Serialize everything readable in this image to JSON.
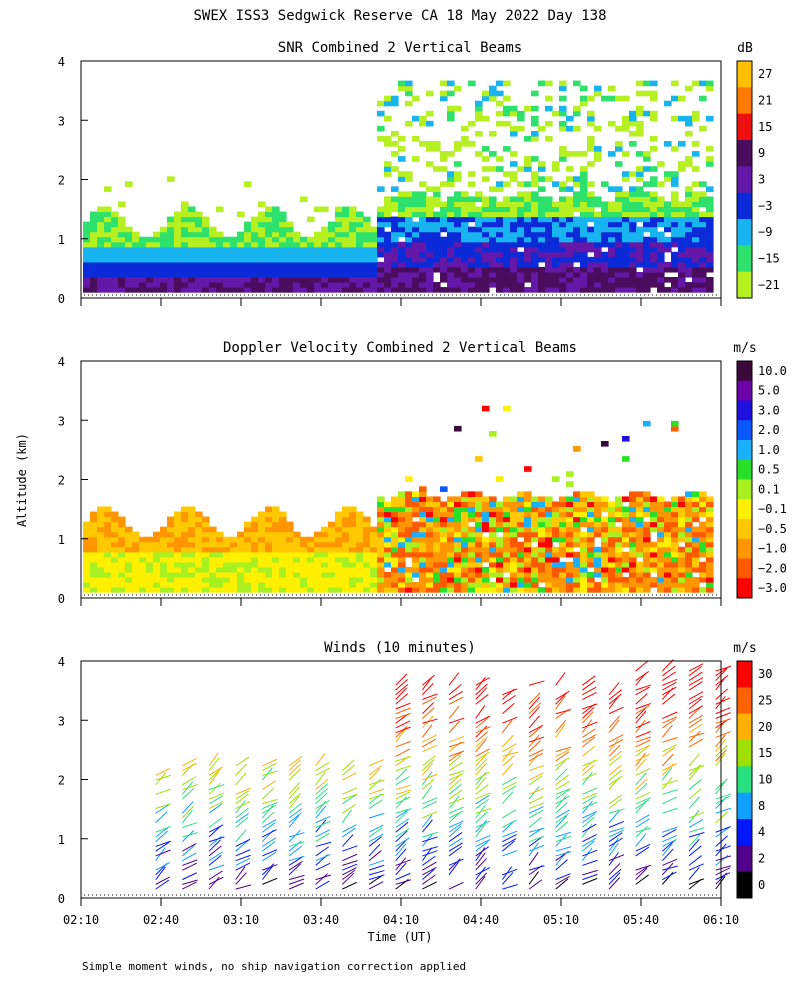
{
  "title": "SWEX ISS3 Sedgwick Reserve CA  18 May 2022 Day 138",
  "ylabel": "Altitude (km)",
  "xlabel": "Time (UT)",
  "footnote": "Simple moment winds, no ship navigation correction applied",
  "chart_data": [
    {
      "type": "heatmap",
      "title": "SNR Combined 2 Vertical Beams",
      "ylabel": "Altitude (km)",
      "ylim": [
        0,
        4
      ],
      "yticks": [
        "0",
        "1",
        "2",
        "3",
        "4"
      ],
      "xlim": [
        "02:10",
        "06:10"
      ],
      "colorbar": {
        "unit": "dB",
        "ticks": [
          "27",
          "21",
          "15",
          "9",
          "3",
          "−3",
          "−9",
          "−15",
          "−21"
        ],
        "colors": [
          "#ffc000",
          "#ff7a00",
          "#ee1010",
          "#4a0d5e",
          "#6418a8",
          "#0b2bd8",
          "#18b4f0",
          "#2ee06c",
          "#b6f020"
        ]
      }
    },
    {
      "type": "heatmap",
      "title": "Doppler Velocity Combined 2 Vertical Beams",
      "ylabel": "Altitude (km)",
      "ylim": [
        0,
        4
      ],
      "yticks": [
        "0",
        "1",
        "2",
        "3",
        "4"
      ],
      "xlim": [
        "02:10",
        "06:10"
      ],
      "colorbar": {
        "unit": "m/s",
        "ticks": [
          "10.0",
          "5.0",
          "3.0",
          "2.0",
          "1.0",
          "0.5",
          "0.1",
          "−0.1",
          "−0.5",
          "−1.0",
          "−2.0",
          "−3.0"
        ],
        "colors": [
          "#3a0a3a",
          "#6b00a8",
          "#2010e0",
          "#0858ff",
          "#18b0ff",
          "#28e028",
          "#a8f020",
          "#fff000",
          "#ffc800",
          "#ff9600",
          "#ff5a00",
          "#ff0000"
        ]
      }
    },
    {
      "type": "scatter",
      "title": "Winds (10 minutes)",
      "ylabel": "Altitude (km)",
      "ylim": [
        0,
        4
      ],
      "yticks": [
        "0",
        "1",
        "2",
        "3",
        "4"
      ],
      "xlabel": "Time (UT)",
      "xticks": [
        "02:10",
        "02:40",
        "03:10",
        "03:40",
        "04:10",
        "04:40",
        "05:10",
        "05:40",
        "06:10"
      ],
      "colorbar": {
        "unit": "m/s",
        "ticks": [
          "30",
          "25",
          "20",
          "15",
          "10",
          "8",
          "4",
          "2",
          "0"
        ],
        "colors": [
          "#ff0000",
          "#ff6000",
          "#ffb000",
          "#a0e000",
          "#28e080",
          "#10a0ff",
          "#0018ff",
          "#50008a",
          "#000000"
        ]
      }
    }
  ]
}
